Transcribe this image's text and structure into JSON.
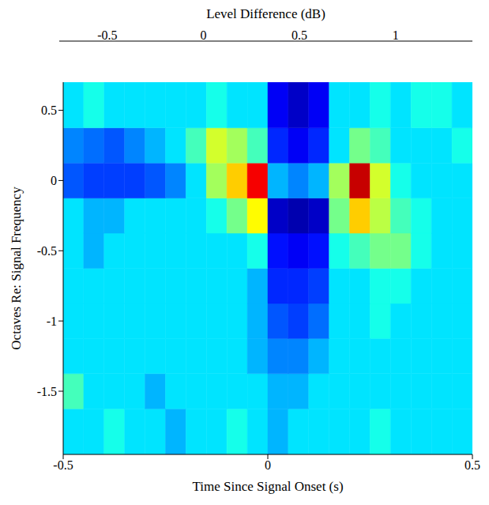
{
  "chart_data": {
    "type": "heatmap",
    "x_label": "Time Since Signal Onset (s)",
    "y_label": "Octaves Re: Signal Frequency",
    "xlim": [
      -0.5,
      0.5
    ],
    "ylim": [
      -1.95,
      0.7
    ],
    "xticks": [
      -0.5,
      0,
      0.5
    ],
    "yticks": [
      -1.5,
      -1,
      -0.5,
      0,
      0.5
    ],
    "x_edges": [
      -0.5,
      -0.45,
      -0.4,
      -0.35,
      -0.3,
      -0.25,
      -0.2,
      -0.15,
      -0.1,
      -0.05,
      0,
      0.05,
      0.1,
      0.15,
      0.2,
      0.25,
      0.3,
      0.35,
      0.4,
      0.45,
      0.5
    ],
    "y_edges": [
      -1.95,
      -1.625,
      -1.375,
      -1.125,
      -0.875,
      -0.625,
      -0.375,
      -0.125,
      0.125,
      0.375,
      0.7
    ],
    "values": [
      [
        0,
        0,
        0.1,
        0,
        0,
        -0.1,
        0,
        0,
        0.1,
        0,
        -0.1,
        0,
        0,
        0,
        0,
        0.1,
        0,
        0,
        0,
        0
      ],
      [
        0.2,
        0,
        0,
        0,
        -0.1,
        0,
        0,
        0,
        0,
        0,
        -0.1,
        -0.1,
        0,
        0,
        0,
        0,
        0,
        0,
        0,
        0
      ],
      [
        0,
        0,
        0,
        0,
        0,
        0,
        0,
        0,
        0,
        -0.1,
        -0.2,
        -0.2,
        -0.1,
        0,
        0,
        0,
        0,
        0,
        0,
        0
      ],
      [
        0,
        0,
        0,
        0,
        0,
        0,
        0,
        0,
        0,
        -0.1,
        -0.3,
        -0.35,
        -0.25,
        0,
        0,
        0.1,
        0,
        0,
        0,
        0
      ],
      [
        0,
        0,
        0,
        0,
        0,
        0,
        0,
        0,
        0,
        -0.1,
        -0.4,
        -0.4,
        -0.35,
        0,
        0,
        0.1,
        0.1,
        0,
        0,
        0
      ],
      [
        0,
        -0.1,
        0,
        0,
        0,
        0,
        0,
        0,
        0,
        0.1,
        -0.45,
        -0.5,
        -0.45,
        0.1,
        0.2,
        0.3,
        0.3,
        0.1,
        0,
        0
      ],
      [
        0,
        -0.1,
        -0.1,
        0,
        0,
        0,
        0,
        0.1,
        0.3,
        0.6,
        -0.6,
        -0.65,
        -0.6,
        0.3,
        0.7,
        0.45,
        0.2,
        0.1,
        0,
        0
      ],
      [
        -0.3,
        -0.35,
        -0.35,
        -0.35,
        -0.3,
        -0.2,
        0,
        0.4,
        0.7,
        1.15,
        -0.1,
        -0.2,
        -0.1,
        0.4,
        1.25,
        0.5,
        0.1,
        0,
        0,
        0
      ],
      [
        -0.2,
        -0.25,
        -0.3,
        -0.2,
        -0.1,
        0,
        0.2,
        0.5,
        0.4,
        0.2,
        -0.4,
        -0.5,
        -0.4,
        0,
        0.3,
        0.2,
        0,
        0,
        0,
        0.1
      ],
      [
        0,
        0.1,
        0,
        0,
        0,
        0,
        0,
        0.1,
        0,
        0,
        -0.5,
        -0.6,
        -0.5,
        0,
        0,
        0.1,
        0,
        0.1,
        0.1,
        0
      ]
    ],
    "colorbar_label": "Level Difference (dB)",
    "colorbar_range": [
      -0.75,
      1.4
    ],
    "colorbar_ticks": [
      -0.5,
      0,
      0.5,
      1
    ]
  }
}
